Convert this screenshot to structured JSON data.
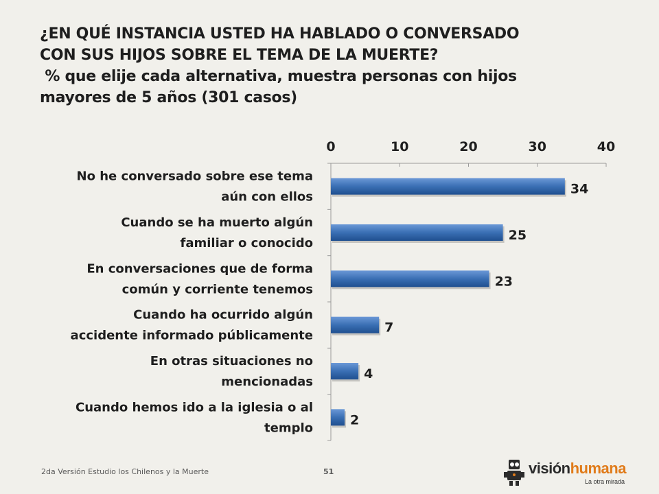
{
  "title_line1": "¿EN QUÉ INSTANCIA USTED HA HABLADO O CONVERSADO",
  "title_line2": "CON SUS HIJOS SOBRE EL TEMA DE LA MUERTE?",
  "subtitle_line1": " % que elije cada alternativa, muestra personas con hijos",
  "subtitle_line2": "mayores de 5 años (301 casos)",
  "footer": {
    "study": "2da Versión Estudio los Chilenos y la Muerte",
    "page": "51"
  },
  "logo": {
    "part1": "visión",
    "part2": "humana",
    "tagline": "La otra mirada",
    "icon": "robot-mascot-icon"
  },
  "colors": {
    "bar": "#3a6fb4",
    "bar_dark": "#1f4f8f",
    "accent": "#e07b1a"
  },
  "chart_data": {
    "type": "bar",
    "orientation": "horizontal",
    "categories": [
      [
        "No he conversado sobre ese tema",
        "aún con ellos"
      ],
      [
        "Cuando se ha muerto algún",
        "familiar o conocido"
      ],
      [
        "En conversaciones que de forma",
        "común y corriente tenemos"
      ],
      [
        "Cuando ha ocurrido algún",
        "accidente informado públicamente"
      ],
      [
        "En otras situaciones no",
        "mencionadas"
      ],
      [
        "Cuando hemos ido a la iglesia o al",
        "templo"
      ]
    ],
    "values": [
      34,
      25,
      23,
      7,
      4,
      2
    ],
    "data_labels": [
      "34",
      "25",
      "23",
      "7",
      "4",
      "2"
    ],
    "xlim": [
      0,
      40
    ],
    "ticks": [
      0,
      10,
      20,
      30,
      40
    ],
    "tick_labels": [
      "0",
      "10",
      "20",
      "30",
      "40"
    ],
    "axis_position": "top",
    "grid": false,
    "legend": "none"
  }
}
